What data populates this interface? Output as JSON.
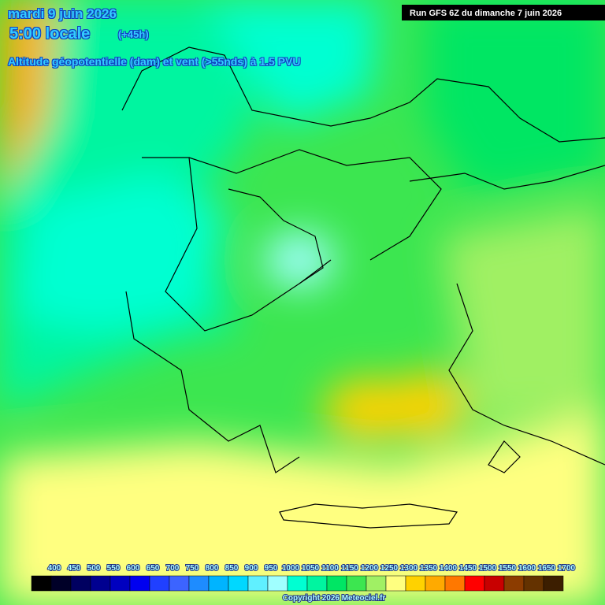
{
  "header": {
    "date": "mardi 9 juin 2026",
    "time": "5:00 locale",
    "lead": "(+45h)",
    "field": "Altitude géopotentielle (dam) et vent (>55nds) à 1.5 PVU",
    "run": "Run GFS 6Z du dimanche 7 juin 2026"
  },
  "legend": {
    "values": [
      400,
      450,
      500,
      550,
      600,
      650,
      700,
      750,
      800,
      850,
      900,
      950,
      1000,
      1050,
      1100,
      1150,
      1200,
      1250,
      1300,
      1350,
      1400,
      1450,
      1500,
      1550,
      1600,
      1650,
      1700
    ],
    "colors": [
      "#000000",
      "#000028",
      "#000060",
      "#000090",
      "#0000c0",
      "#0000f0",
      "#2040ff",
      "#3c64ff",
      "#1e8cff",
      "#00b4ff",
      "#00d8ff",
      "#60f0ff",
      "#a0ffff",
      "#00ffd2",
      "#00f5a0",
      "#00e664",
      "#3ce650",
      "#a0f064",
      "#ffff80",
      "#ffd200",
      "#ffaa00",
      "#ff7800",
      "#ff0000",
      "#c80000",
      "#8c3c00",
      "#643200",
      "#3c1e00"
    ]
  },
  "footer": {
    "copyright": "Copyright 2026 Meteociel.fr"
  }
}
